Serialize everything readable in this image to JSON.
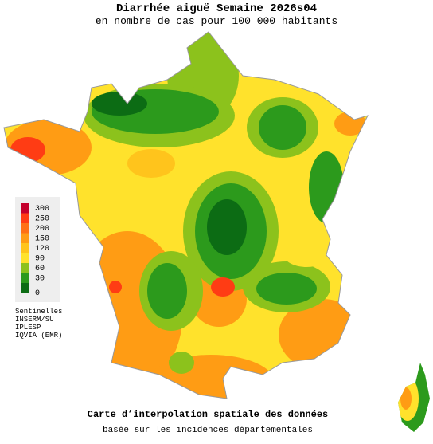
{
  "title": "Diarrhée aiguë Semaine 2026s04",
  "subtitle": "en nombre de cas pour 100 000 habitants",
  "legend": {
    "items": [
      {
        "value": 300,
        "color": "#c4002c"
      },
      {
        "value": 250,
        "color": "#ff3c14"
      },
      {
        "value": 200,
        "color": "#ff7014"
      },
      {
        "value": 150,
        "color": "#ff9c14"
      },
      {
        "value": 120,
        "color": "#ffc41c"
      },
      {
        "value": 90,
        "color": "#ffe22c"
      },
      {
        "value": 60,
        "color": "#8cc21c"
      },
      {
        "value": 30,
        "color": "#2c9a1c"
      },
      {
        "value": 0,
        "color": "#0c6c14"
      }
    ]
  },
  "sources": [
    "Sentinelles",
    "INSERM/SU",
    "IPLESP",
    "IQVIA (EMR)"
  ],
  "footer": {
    "line1": "Carte d’interpolation spatiale des données",
    "line2": "basée sur les incidences départementales"
  }
}
